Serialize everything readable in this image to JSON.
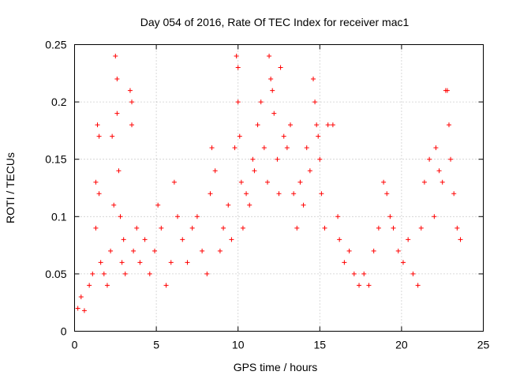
{
  "chart_data": {
    "type": "scatter",
    "title": "Day 054 of 2016, Rate Of TEC Index for receiver mac1",
    "xlabel": "GPS time / hours",
    "ylabel": "ROTI / TECUs",
    "xlim": [
      0,
      25
    ],
    "ylim": [
      0,
      0.25
    ],
    "xticks": [
      0,
      5,
      10,
      15,
      20,
      25
    ],
    "yticks": [
      0,
      0.05,
      0.1,
      0.15,
      0.2,
      0.25
    ],
    "xtick_labels": [
      "0",
      "5",
      "10",
      "15",
      "20",
      "25"
    ],
    "ytick_labels": [
      "0",
      "0.05",
      "0.1",
      "0.15",
      "0.2",
      "0.25"
    ],
    "grid": true,
    "marker": "+",
    "color": "#ff0000",
    "series": [
      {
        "name": "ROTI",
        "x": [
          0.2,
          0.4,
          0.6,
          0.9,
          1.1,
          1.3,
          1.3,
          1.4,
          1.5,
          1.5,
          1.6,
          1.8,
          2.0,
          2.2,
          2.3,
          2.4,
          2.5,
          2.6,
          2.6,
          2.7,
          2.8,
          2.9,
          3.0,
          3.1,
          3.4,
          3.5,
          3.5,
          3.6,
          3.8,
          4.0,
          4.3,
          4.6,
          4.9,
          5.1,
          5.3,
          5.6,
          5.9,
          6.1,
          6.3,
          6.6,
          6.9,
          7.2,
          7.5,
          7.8,
          8.1,
          8.3,
          8.4,
          8.6,
          8.9,
          9.1,
          9.4,
          9.6,
          9.8,
          9.9,
          10.0,
          10.0,
          10.1,
          10.2,
          10.3,
          10.5,
          10.7,
          10.9,
          11.0,
          11.2,
          11.4,
          11.6,
          11.8,
          11.9,
          12.0,
          12.1,
          12.2,
          12.4,
          12.5,
          12.6,
          12.8,
          13.0,
          13.2,
          13.4,
          13.6,
          13.8,
          14.0,
          14.2,
          14.4,
          14.6,
          14.7,
          14.8,
          14.9,
          15.0,
          15.1,
          15.3,
          15.5,
          15.8,
          16.1,
          16.2,
          16.5,
          16.8,
          17.1,
          17.4,
          17.7,
          18.0,
          18.3,
          18.6,
          18.9,
          19.1,
          19.3,
          19.5,
          19.8,
          20.1,
          20.4,
          20.7,
          21.0,
          21.2,
          21.4,
          21.7,
          22.0,
          22.1,
          22.3,
          22.5,
          22.7,
          22.8,
          22.9,
          23.0,
          23.2,
          23.4,
          23.6
        ],
        "y": [
          0.02,
          0.03,
          0.018,
          0.04,
          0.05,
          0.09,
          0.13,
          0.18,
          0.17,
          0.12,
          0.06,
          0.05,
          0.04,
          0.07,
          0.17,
          0.11,
          0.24,
          0.22,
          0.19,
          0.14,
          0.1,
          0.06,
          0.08,
          0.05,
          0.21,
          0.2,
          0.18,
          0.07,
          0.09,
          0.06,
          0.08,
          0.05,
          0.07,
          0.11,
          0.09,
          0.04,
          0.06,
          0.13,
          0.1,
          0.08,
          0.06,
          0.09,
          0.1,
          0.07,
          0.05,
          0.12,
          0.16,
          0.14,
          0.07,
          0.09,
          0.11,
          0.08,
          0.16,
          0.24,
          0.23,
          0.2,
          0.17,
          0.13,
          0.09,
          0.12,
          0.11,
          0.15,
          0.14,
          0.18,
          0.2,
          0.16,
          0.13,
          0.24,
          0.22,
          0.21,
          0.19,
          0.15,
          0.12,
          0.23,
          0.17,
          0.16,
          0.18,
          0.12,
          0.09,
          0.13,
          0.11,
          0.16,
          0.14,
          0.22,
          0.2,
          0.18,
          0.17,
          0.15,
          0.12,
          0.09,
          0.18,
          0.18,
          0.1,
          0.08,
          0.06,
          0.07,
          0.05,
          0.04,
          0.05,
          0.04,
          0.07,
          0.09,
          0.13,
          0.12,
          0.1,
          0.09,
          0.07,
          0.06,
          0.08,
          0.05,
          0.04,
          0.09,
          0.13,
          0.15,
          0.1,
          0.16,
          0.14,
          0.13,
          0.21,
          0.21,
          0.18,
          0.15,
          0.12,
          0.09,
          0.08
        ]
      }
    ]
  }
}
